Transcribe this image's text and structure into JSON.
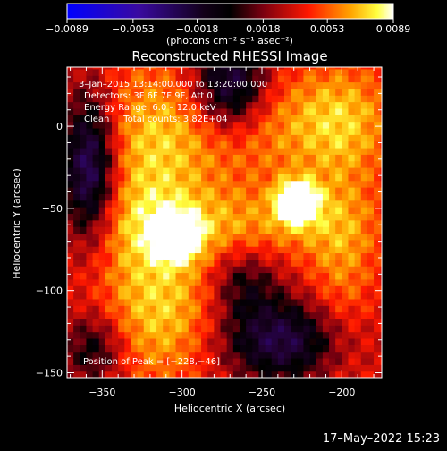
{
  "chart_data": {
    "type": "heatmap",
    "title": "Reconstructed RHESSI Image",
    "xlabel": "Heliocentric X (arcsec)",
    "ylabel": "Heliocentric Y (arcsec)",
    "xlim": [
      -372,
      -175
    ],
    "ylim": [
      -153,
      36
    ],
    "xticks": [
      "−350",
      "−300",
      "−250",
      "−200"
    ],
    "xtick_values": [
      -350,
      -300,
      -250,
      -200
    ],
    "yticks": [
      "0",
      "−50",
      "−100",
      "−150"
    ],
    "ytick_values": [
      0,
      -50,
      -100,
      -150
    ],
    "colorbar": {
      "range": [
        -0.0089,
        0.0089
      ],
      "tick_labels": [
        "−0.0089",
        "−0.0053",
        "−0.0018",
        "0.0018",
        "0.0053",
        "0.0089"
      ],
      "tick_values": [
        -0.0089,
        -0.0053,
        -0.0018,
        0.0018,
        0.0053,
        0.0089
      ],
      "units_label": "(photons cm⁻² s⁻¹ asec⁻²)",
      "colors": [
        "#0000ff",
        "#4b0082",
        "#000000",
        "#7a0010",
        "#ff0000",
        "#ffa500",
        "#ffff00",
        "#ffffff"
      ]
    },
    "annotations": [
      "3–Jan–2015 13:14:00.000 to 13:20:00.000",
      "Detectors: 3F 6F 7F 9F, Att 0",
      "Energy Range: 6.0 – 12.0 keV",
      "Clean     Total counts: 3.82E+04"
    ],
    "peak_label": "Position of Peak = [−228,−46]",
    "sources": [
      {
        "x": -303,
        "y": -67,
        "peak": 0.0082
      },
      {
        "x": -228,
        "y": -46,
        "peak": 0.0089
      }
    ]
  },
  "timestamp": "17–May–2022 15:23"
}
